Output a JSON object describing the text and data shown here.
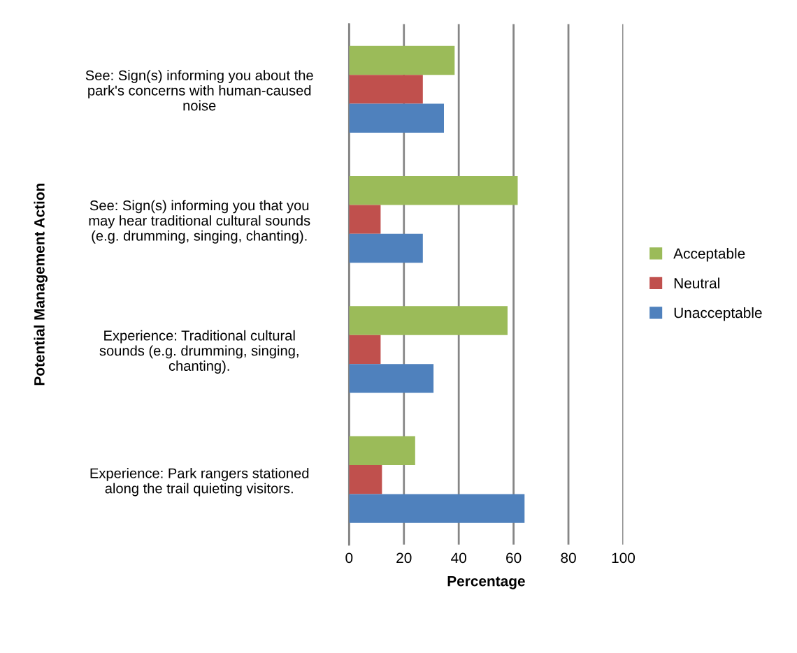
{
  "chart_data": {
    "type": "bar",
    "orientation": "horizontal",
    "xlabel": "Percentage",
    "ylabel": "Potential Management Action",
    "categories": [
      "See: Sign(s) informing you about the\npark's concerns with human-caused\nnoise",
      "See: Sign(s) informing you that you\nmay hear traditional cultural sounds\n(e.g. drumming, singing, chanting).",
      "Experience: Traditional cultural\nsounds (e.g. drumming, singing,\nchanting).",
      "Experience: Park rangers stationed\nalong the trail quieting visitors."
    ],
    "series": [
      {
        "name": "Acceptable",
        "color": "#9bbb59",
        "values": [
          38.5,
          61.5,
          57.8,
          24.1
        ]
      },
      {
        "name": "Neutral",
        "color": "#c0504d",
        "values": [
          26.9,
          11.5,
          11.5,
          12.0
        ]
      },
      {
        "name": "Unacceptable",
        "color": "#4f81bd",
        "values": [
          34.6,
          26.9,
          30.8,
          64.0
        ]
      }
    ],
    "xlim": [
      0,
      100
    ],
    "xticks": [
      0,
      20,
      40,
      60,
      80,
      100
    ],
    "grid": "x",
    "legend": "right"
  }
}
